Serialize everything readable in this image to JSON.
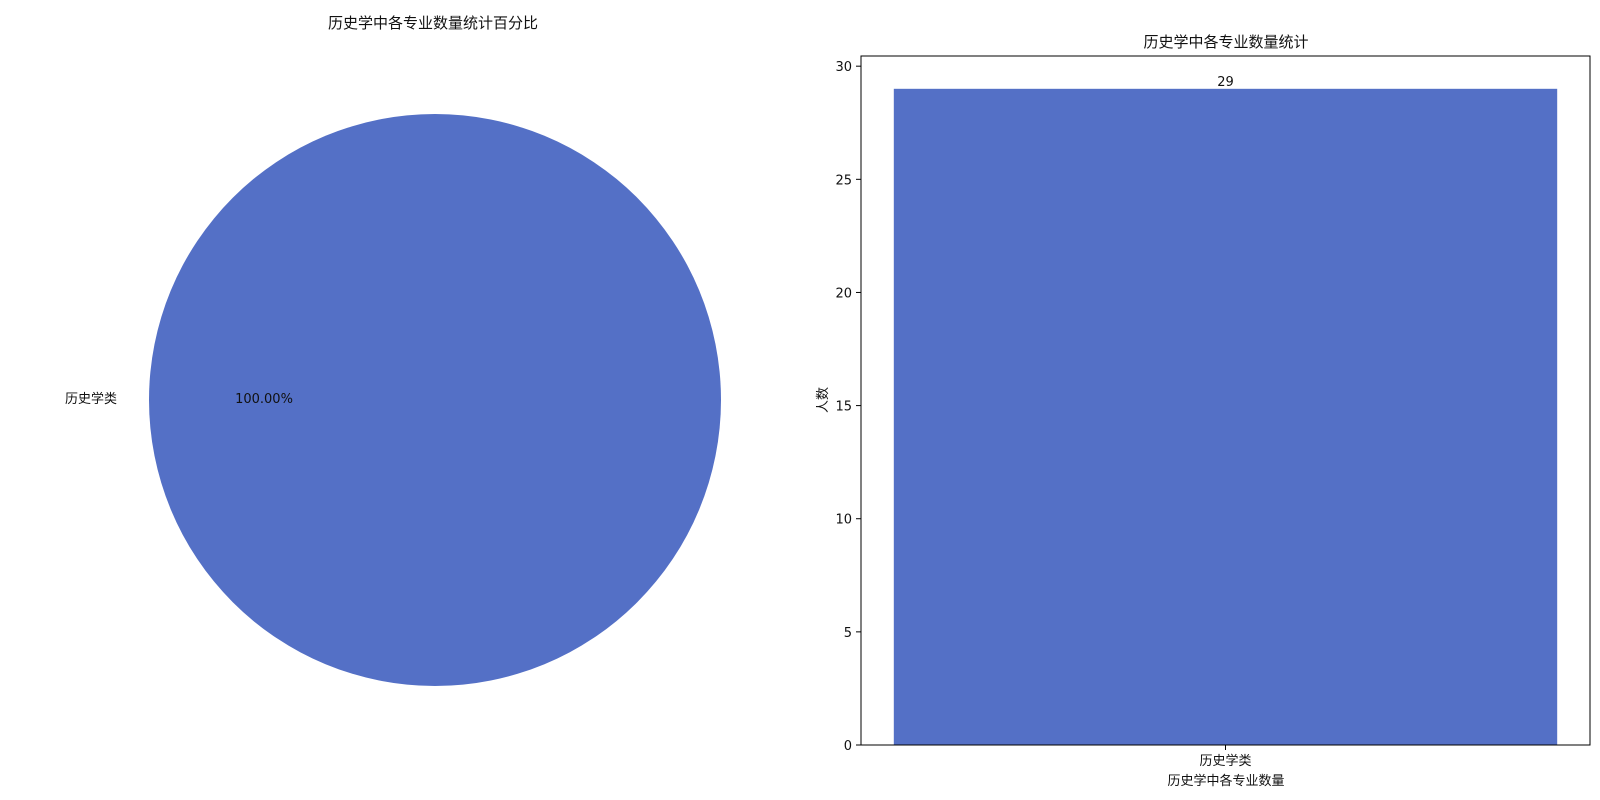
{
  "chart_data": [
    {
      "type": "pie",
      "title": "历史学中各专业数量统计百分比",
      "slices": [
        {
          "label": "历史学类",
          "value": 100.0,
          "display": "100.00%"
        }
      ],
      "colors": {
        "slice": "#5470c6"
      }
    },
    {
      "type": "bar",
      "title": "历史学中各专业数量统计",
      "categories": [
        "历史学类"
      ],
      "values": [
        29
      ],
      "value_labels": [
        "29"
      ],
      "xlabel": "历史学中各专业数量",
      "ylabel": "人数",
      "ylim": [
        0,
        30.45
      ],
      "yticks": [
        0,
        5,
        10,
        15,
        20,
        25,
        30
      ],
      "colors": {
        "bar": "#5470c6",
        "axis": "#000000"
      }
    }
  ]
}
